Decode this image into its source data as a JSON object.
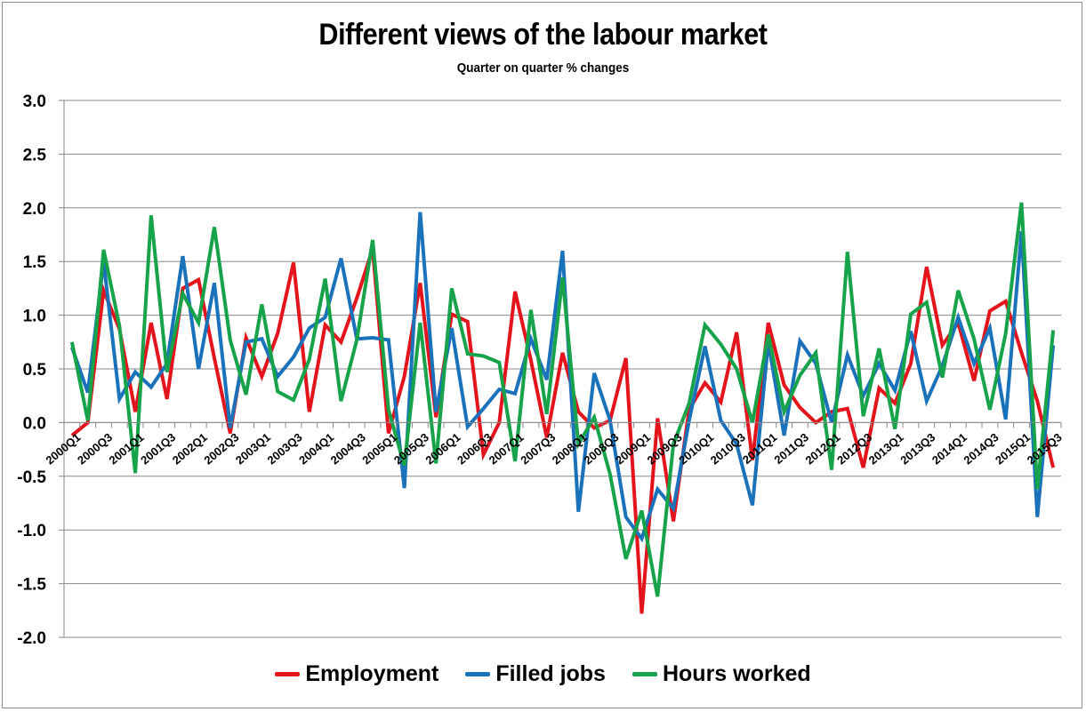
{
  "chart_data": {
    "type": "line",
    "title": "Different views of the labour market",
    "subtitle": "Quarter on quarter % changes",
    "xlabel": "",
    "ylabel": "",
    "ylim": [
      -2.0,
      3.0
    ],
    "yticks": [
      "3.0",
      "2.5",
      "2.0",
      "1.5",
      "1.0",
      "0.5",
      "0.0",
      "-0.5",
      "-1.0",
      "-1.5",
      "-2.0"
    ],
    "grid": true,
    "legend_position": "bottom",
    "x": [
      "2000Q1",
      "2000Q2",
      "2000Q3",
      "2000Q4",
      "2001Q1",
      "2001Q2",
      "2001Q3",
      "2001Q4",
      "2002Q1",
      "2002Q2",
      "2002Q3",
      "2002Q4",
      "2003Q1",
      "2003Q2",
      "2003Q3",
      "2003Q4",
      "2004Q1",
      "2004Q2",
      "2004Q3",
      "2004Q4",
      "2005Q1",
      "2005Q2",
      "2005Q3",
      "2005Q4",
      "2006Q1",
      "2006Q2",
      "2006Q3",
      "2006Q4",
      "2007Q1",
      "2007Q2",
      "2007Q3",
      "2007Q4",
      "2008Q1",
      "2008Q2",
      "2008Q3",
      "2008Q4",
      "2009Q1",
      "2009Q2",
      "2009Q3",
      "2009Q4",
      "2010Q1",
      "2010Q2",
      "2010Q3",
      "2010Q4",
      "2011Q1",
      "2011Q2",
      "2011Q3",
      "2011Q4",
      "2012Q1",
      "2012Q2",
      "2012Q3",
      "2012Q4",
      "2013Q1",
      "2013Q2",
      "2013Q3",
      "2013Q4",
      "2014Q1",
      "2014Q2",
      "2014Q3",
      "2014Q4",
      "2015Q1",
      "2015Q2",
      "2015Q3"
    ],
    "xtick_labels": [
      "2000Q1",
      "2000Q3",
      "2001Q1",
      "2001Q3",
      "2002Q1",
      "2002Q3",
      "2003Q1",
      "2003Q3",
      "2004Q1",
      "2004Q3",
      "2005Q1",
      "2005Q3",
      "2006Q1",
      "2006Q3",
      "2007Q1",
      "2007Q3",
      "2008Q1",
      "2008Q3",
      "2009Q1",
      "2009Q3",
      "2010Q1",
      "2010Q3",
      "2011Q1",
      "2011Q3",
      "2012Q1",
      "2012Q3",
      "2013Q1",
      "2013Q3",
      "2014Q1",
      "2014Q3",
      "2015Q1",
      "2015Q3"
    ],
    "series": [
      {
        "name": "Employment",
        "color": "#e3141b",
        "values": [
          -0.12,
          0.0,
          1.23,
          0.87,
          0.1,
          0.93,
          0.22,
          1.25,
          1.33,
          0.6,
          -0.1,
          0.79,
          0.43,
          0.83,
          1.49,
          0.1,
          0.91,
          0.75,
          1.16,
          1.62,
          -0.1,
          0.43,
          1.3,
          0.05,
          1.01,
          0.94,
          -0.3,
          0.0,
          1.22,
          0.58,
          -0.14,
          0.65,
          0.1,
          -0.05,
          0.02,
          0.6,
          -1.78,
          0.04,
          -0.92,
          0.12,
          0.37,
          0.19,
          0.84,
          -0.35,
          0.93,
          0.35,
          0.14,
          0.0,
          0.1,
          0.13,
          -0.42,
          0.32,
          0.18,
          0.55,
          1.45,
          0.72,
          0.93,
          0.39,
          1.04,
          1.13,
          0.65,
          0.2,
          -0.42
        ]
      },
      {
        "name": "Filled jobs",
        "color": "#1a72bb",
        "values": [
          0.7,
          0.28,
          1.5,
          0.22,
          0.47,
          0.33,
          0.55,
          1.55,
          0.5,
          1.3,
          -0.05,
          0.75,
          0.78,
          0.43,
          0.61,
          0.88,
          0.98,
          1.53,
          0.78,
          0.79,
          0.77,
          -0.61,
          1.96,
          0.1,
          0.88,
          -0.04,
          0.13,
          0.31,
          0.27,
          0.78,
          0.4,
          1.6,
          -0.83,
          0.46,
          0.02,
          -0.88,
          -1.08,
          -0.62,
          -0.8,
          0.02,
          0.71,
          0.02,
          -0.2,
          -0.77,
          0.75,
          -0.12,
          0.76,
          0.55,
          0.0,
          0.63,
          0.25,
          0.55,
          0.3,
          0.85,
          0.2,
          0.53,
          0.98,
          0.55,
          0.88,
          0.03,
          1.78,
          -0.88,
          0.72
        ]
      },
      {
        "name": "Hours worked",
        "color": "#16a34a",
        "values": [
          0.75,
          0.02,
          1.61,
          0.9,
          -0.47,
          1.93,
          0.47,
          1.2,
          0.93,
          1.82,
          0.77,
          0.26,
          1.1,
          0.29,
          0.21,
          0.59,
          1.34,
          0.2,
          0.77,
          1.7,
          0.12,
          -0.4,
          0.93,
          -0.38,
          1.25,
          0.64,
          0.62,
          0.56,
          -0.36,
          1.05,
          0.08,
          1.35,
          -0.2,
          0.05,
          -0.48,
          -1.27,
          -0.82,
          -1.62,
          -0.2,
          0.18,
          0.91,
          0.73,
          0.5,
          0.0,
          0.82,
          0.1,
          0.44,
          0.65,
          -0.44,
          1.59,
          0.06,
          0.69,
          -0.06,
          1.01,
          1.12,
          0.42,
          1.23,
          0.78,
          0.12,
          0.83,
          2.05,
          -0.62,
          0.86
        ]
      }
    ]
  },
  "legend": {
    "items": [
      {
        "label": "Employment",
        "color": "#e3141b"
      },
      {
        "label": "Filled jobs",
        "color": "#1a72bb"
      },
      {
        "label": "Hours worked",
        "color": "#16a34a"
      }
    ]
  }
}
